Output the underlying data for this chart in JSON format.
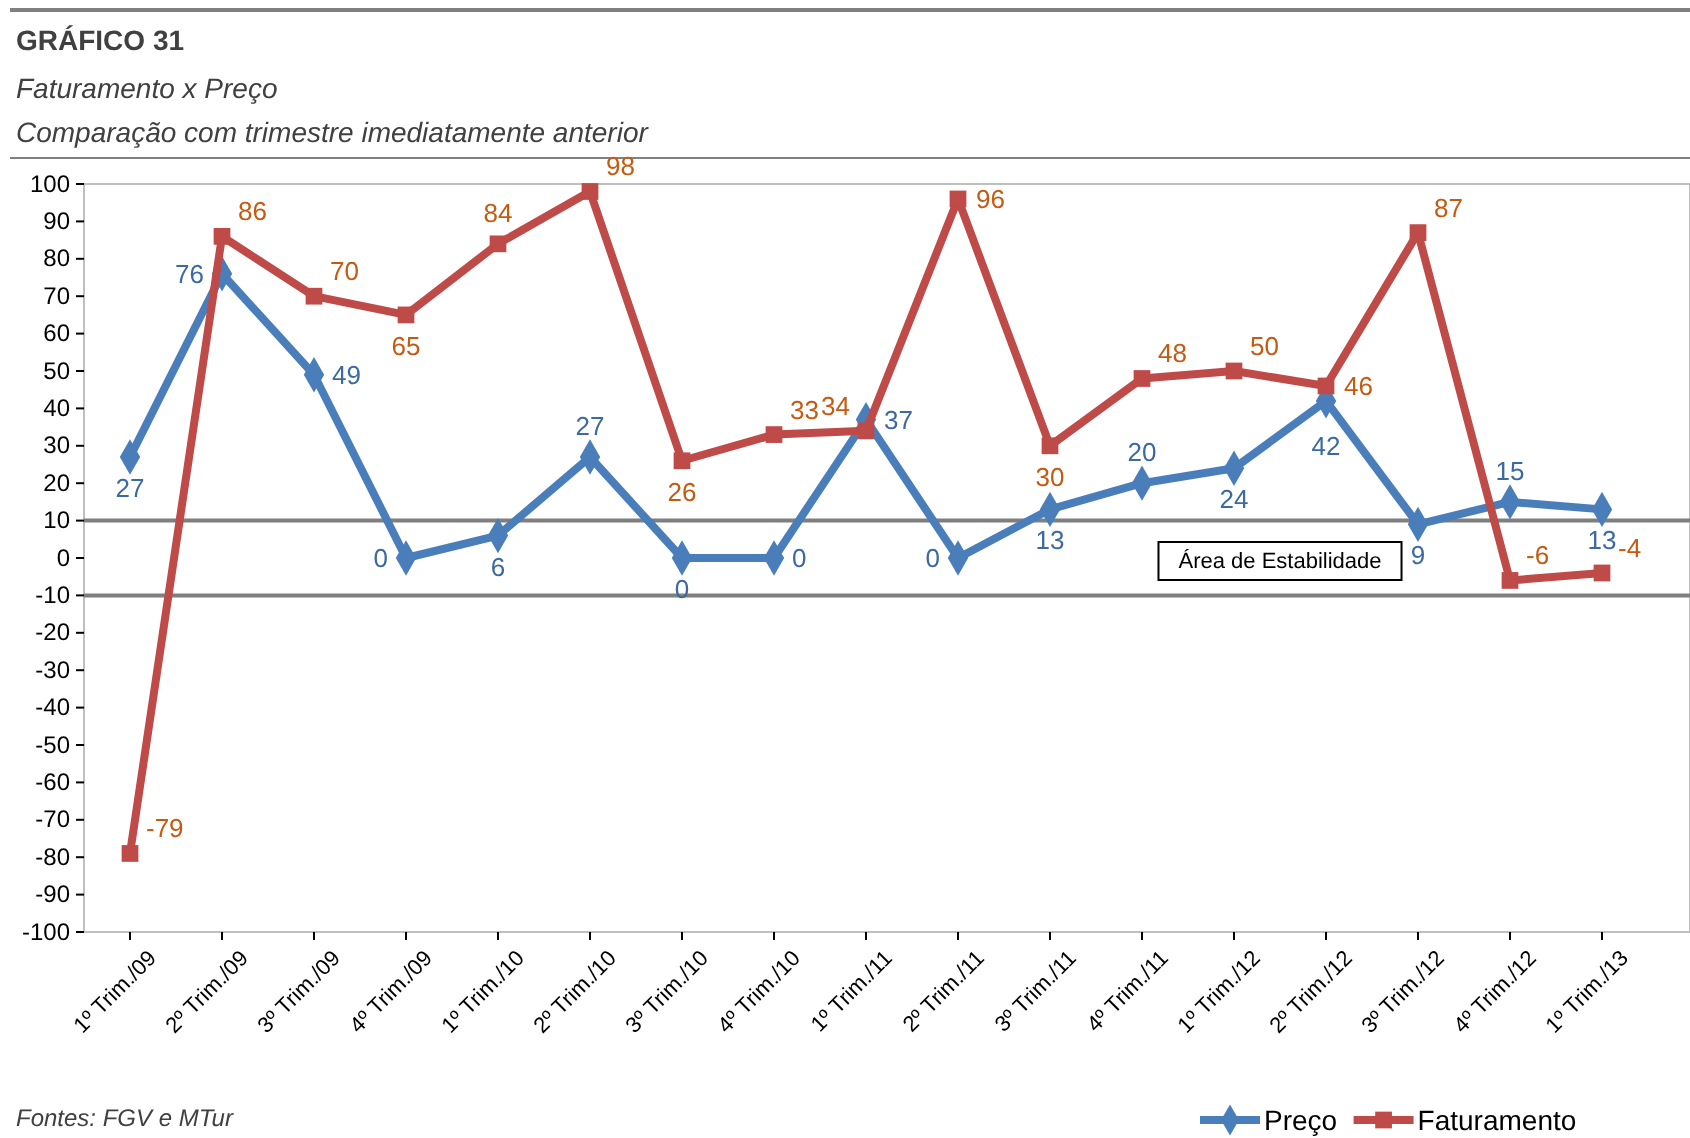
{
  "chart_data": {
    "type": "line",
    "title": "GRÁFICO 31",
    "subtitle": "Faturamento x Preço\nComparação com trimestre imediatamente anterior",
    "categories": [
      "1º Trim./09",
      "2º Trim./09",
      "3º Trim./09",
      "4º Trim./09",
      "1º Trim./10",
      "2º Trim./10",
      "3º Trim./10",
      "4º Trim./10",
      "1º Trim./11",
      "2º Trim./11",
      "3º Trim./11",
      "4º Trim./11",
      "1º Trim./12",
      "2º Trim./12",
      "3º Trim./12",
      "4º Trim./12",
      "1º Trim./13"
    ],
    "series": [
      {
        "name": "Preço",
        "color": "#4a7ebb",
        "marker": "diamond",
        "values": [
          27,
          76,
          49,
          0,
          6,
          27,
          0,
          0,
          37,
          0,
          13,
          20,
          24,
          42,
          9,
          15,
          13
        ]
      },
      {
        "name": "Faturamento",
        "color": "#be4b48",
        "marker": "square",
        "values": [
          -79,
          86,
          70,
          65,
          84,
          98,
          26,
          33,
          34,
          96,
          30,
          48,
          50,
          46,
          87,
          -6,
          -4
        ]
      }
    ],
    "ylim": [
      -100,
      100
    ],
    "yticks": [
      -100,
      -90,
      -80,
      -70,
      -60,
      -50,
      -40,
      -30,
      -20,
      -10,
      0,
      10,
      20,
      30,
      40,
      50,
      60,
      70,
      80,
      90,
      100
    ],
    "ref_lines": [
      {
        "axis": "y",
        "value": 10,
        "color": "#7f7f7f"
      },
      {
        "axis": "y",
        "value": -10,
        "color": "#7f7f7f"
      }
    ],
    "annotations": [
      "Área de Estabilidade",
      "Fontes: FGV e MTur"
    ],
    "data_labels": true,
    "grid": false,
    "legend": "bottom right",
    "line_style": "solid"
  }
}
